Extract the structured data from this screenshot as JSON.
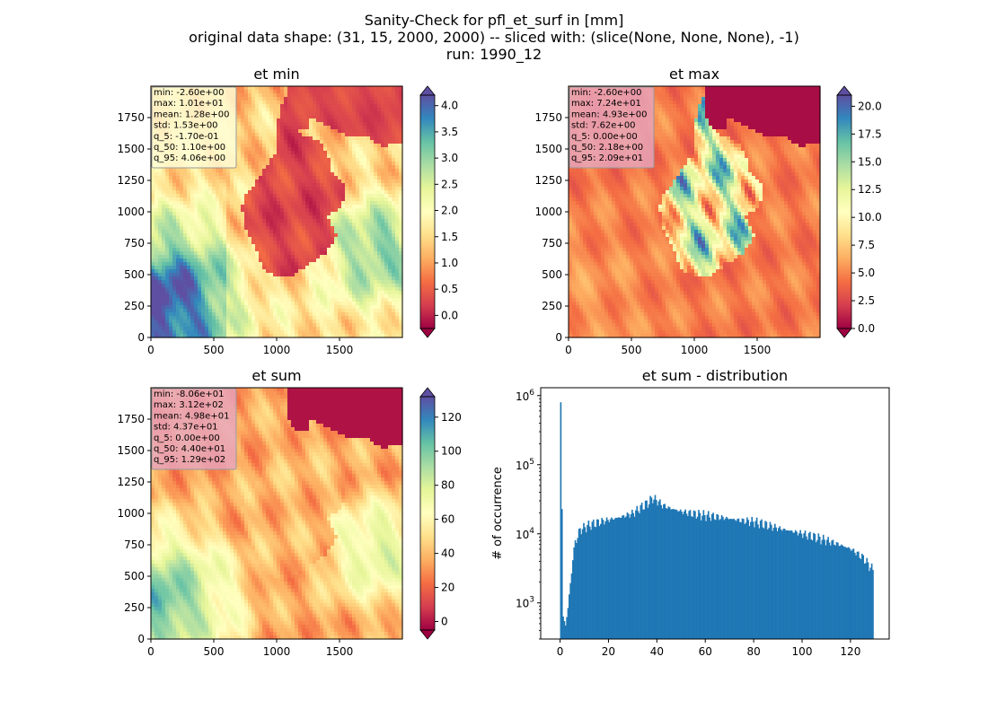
{
  "figure": {
    "title_lines": [
      "Sanity-Check for pfl_et_surf in [mm]",
      "original data shape: (31, 15, 2000, 2000) -- sliced with: (slice(None, None, None), -1)",
      "run: 1990_12"
    ]
  },
  "colors": {
    "spectral_stops": [
      "#9e0142",
      "#d53e4f",
      "#f46d43",
      "#fdae61",
      "#fee08b",
      "#ffffbf",
      "#e6f598",
      "#abdda4",
      "#66c2a5",
      "#3288bd",
      "#5e4fa2"
    ],
    "hist_bar": "#1f77b4",
    "stats_box_yellow": "#fffbd4",
    "stats_box_red": "#e8a3b8"
  },
  "chart_data": [
    {
      "type": "heatmap",
      "title": "et min",
      "colormap": "Spectral",
      "x_ticks": [
        "0",
        "500",
        "1000",
        "1500"
      ],
      "y_ticks": [
        "0",
        "250",
        "500",
        "750",
        "1000",
        "1250",
        "1500",
        "1750"
      ],
      "xlim": [
        0,
        2000
      ],
      "ylim": [
        0,
        2000
      ],
      "colorbar": {
        "ticks": [
          "0.0",
          "0.5",
          "1.0",
          "1.5",
          "2.0",
          "2.5",
          "3.0",
          "3.5",
          "4.0"
        ],
        "range": [
          -0.25,
          4.2
        ],
        "extend": "both"
      },
      "stats_lines": [
        "min: -2.60e+00",
        "max: 1.01e+01",
        "mean: 1.28e+00",
        "std: 1.53e+00",
        "q_5: -1.70e-01",
        "q_50: 1.10e+00",
        "q_95: 4.06e+00"
      ]
    },
    {
      "type": "heatmap",
      "title": "et max",
      "colormap": "Spectral",
      "x_ticks": [
        "0",
        "500",
        "1000",
        "1500"
      ],
      "y_ticks": [
        "0",
        "250",
        "500",
        "750",
        "1000",
        "1250",
        "1500",
        "1750"
      ],
      "xlim": [
        0,
        2000
      ],
      "ylim": [
        0,
        2000
      ],
      "colorbar": {
        "ticks": [
          "0.0",
          "2.5",
          "5.0",
          "7.5",
          "10.0",
          "12.5",
          "15.0",
          "17.5",
          "20.0"
        ],
        "range": [
          0,
          21
        ],
        "extend": "both"
      },
      "stats_lines": [
        "min: -2.60e+00",
        "max: 7.24e+01",
        "mean: 4.93e+00",
        "std: 7.62e+00",
        "q_5: 0.00e+00",
        "q_50: 2.18e+00",
        "q_95: 2.09e+01"
      ]
    },
    {
      "type": "heatmap",
      "title": "et sum",
      "colormap": "Spectral",
      "x_ticks": [
        "0",
        "500",
        "1000",
        "1500"
      ],
      "y_ticks": [
        "0",
        "250",
        "500",
        "750",
        "1000",
        "1250",
        "1500",
        "1750"
      ],
      "xlim": [
        0,
        2000
      ],
      "ylim": [
        0,
        2000
      ],
      "colorbar": {
        "ticks": [
          "0",
          "20",
          "40",
          "60",
          "80",
          "100",
          "120"
        ],
        "range": [
          -5,
          132
        ],
        "extend": "both"
      },
      "stats_lines": [
        "min: -8.06e+01",
        "max: 3.12e+02",
        "mean: 4.98e+01",
        "std: 4.37e+01",
        "q_5: 0.00e+00",
        "q_50: 4.40e+01",
        "q_95: 1.29e+02"
      ]
    },
    {
      "type": "bar",
      "title": "et sum - distribution",
      "ylabel": "# of occurrence",
      "xlabel": "",
      "y_scale": "log",
      "x_ticks": [
        "0",
        "20",
        "40",
        "60",
        "80",
        "100",
        "120"
      ],
      "y_ticks": [
        "10^3",
        "10^4",
        "10^5",
        "10^6"
      ],
      "xlim": [
        -8,
        136
      ],
      "ylim": [
        300,
        1300000
      ],
      "bin_width": 0.5,
      "bins_x": [
        0,
        1,
        2,
        3,
        4,
        5,
        6,
        8,
        10,
        12,
        15,
        20,
        25,
        30,
        33,
        36,
        38,
        40,
        42,
        45,
        48,
        50,
        55,
        60,
        65,
        70,
        75,
        80,
        85,
        90,
        95,
        100,
        105,
        110,
        115,
        120,
        125,
        129
      ],
      "bins_count": [
        800000,
        650,
        450,
        900,
        1800,
        4500,
        7500,
        11500,
        12500,
        13500,
        14500,
        16000,
        17500,
        20000,
        24000,
        28000,
        33000,
        30000,
        26000,
        23500,
        22000,
        21000,
        19500,
        18500,
        17500,
        16500,
        15500,
        15000,
        13500,
        12000,
        11000,
        10000,
        9000,
        8000,
        7000,
        6000,
        4500,
        3000
      ]
    }
  ]
}
